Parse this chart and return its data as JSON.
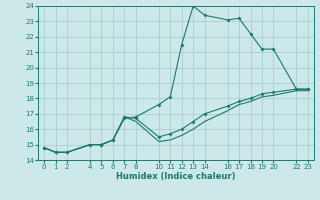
{
  "xlabel": "Humidex (Indice chaleur)",
  "bg_color": "#cde8e8",
  "grid_color": "#aacfcf",
  "line_color": "#1a7a6e",
  "xlim": [
    -0.5,
    23.5
  ],
  "ylim": [
    14,
    24
  ],
  "xticks": [
    0,
    1,
    2,
    4,
    5,
    6,
    7,
    8,
    10,
    11,
    12,
    13,
    14,
    16,
    17,
    18,
    19,
    20,
    22,
    23
  ],
  "yticks": [
    14,
    15,
    16,
    17,
    18,
    19,
    20,
    21,
    22,
    23,
    24
  ],
  "line1_x": [
    0,
    1,
    2,
    4,
    5,
    6,
    7,
    8,
    10,
    11,
    12,
    13,
    14,
    16,
    17,
    18,
    19,
    20,
    22,
    23
  ],
  "line1_y": [
    14.8,
    14.5,
    14.5,
    15.0,
    15.0,
    15.3,
    16.7,
    16.8,
    17.6,
    18.1,
    21.5,
    24.0,
    23.4,
    23.1,
    23.2,
    22.2,
    21.2,
    21.2,
    18.6,
    18.6
  ],
  "line2_x": [
    0,
    1,
    2,
    4,
    5,
    6,
    7,
    8,
    10,
    11,
    12,
    13,
    14,
    16,
    17,
    18,
    19,
    20,
    22,
    23
  ],
  "line2_y": [
    14.8,
    14.5,
    14.5,
    15.0,
    15.0,
    15.3,
    16.8,
    16.7,
    15.5,
    15.7,
    16.0,
    16.5,
    17.0,
    17.5,
    17.8,
    18.0,
    18.3,
    18.4,
    18.6,
    18.6
  ],
  "line3_x": [
    0,
    1,
    2,
    4,
    5,
    6,
    7,
    8,
    10,
    11,
    12,
    13,
    14,
    16,
    17,
    18,
    19,
    20,
    22,
    23
  ],
  "line3_y": [
    14.8,
    14.5,
    14.5,
    15.0,
    15.0,
    15.3,
    16.8,
    16.5,
    15.2,
    15.3,
    15.6,
    16.0,
    16.5,
    17.2,
    17.6,
    17.8,
    18.1,
    18.2,
    18.5,
    18.5
  ]
}
